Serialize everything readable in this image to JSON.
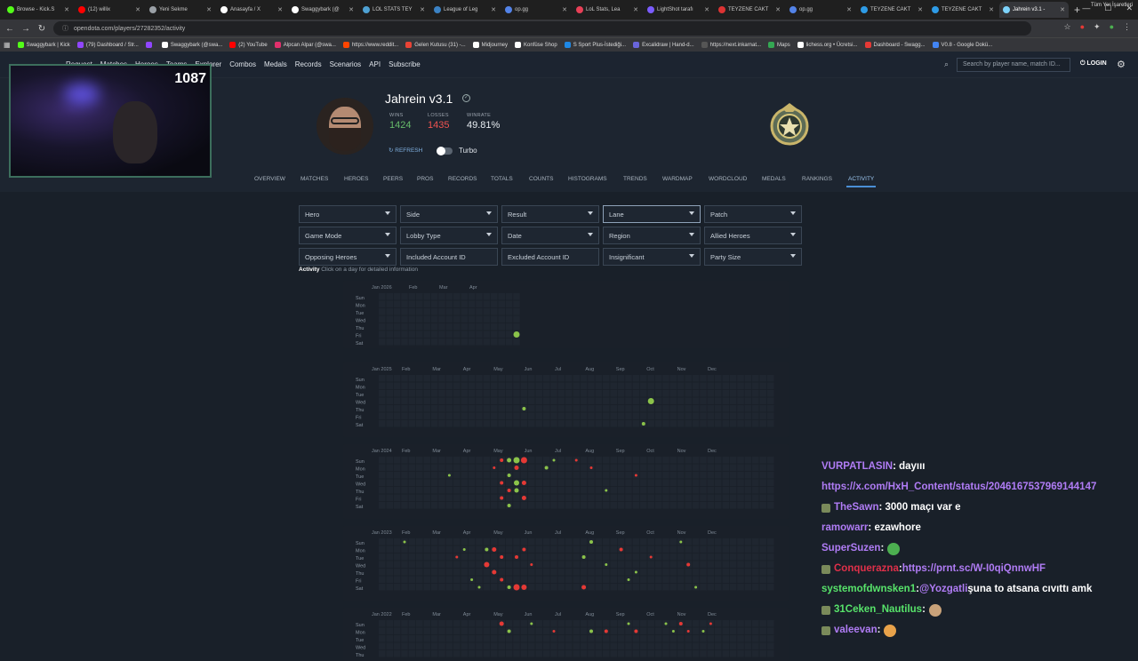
{
  "browser": {
    "tabs": [
      {
        "label": "Browse - Kick.S",
        "color": "#53fc18"
      },
      {
        "label": "(12) willix",
        "color": "#ff0000"
      },
      {
        "label": "Yeni Sekme",
        "color": "#9aa0a6"
      },
      {
        "label": "Anasayfa / X",
        "color": "#ffffff"
      },
      {
        "label": "Swaggybark (@",
        "color": "#ffffff"
      },
      {
        "label": "LOL STATS TEY",
        "color": "#4ea1d3"
      },
      {
        "label": "League of Leg",
        "color": "#3b82c4"
      },
      {
        "label": "op.gg",
        "color": "#5383e8"
      },
      {
        "label": "LoL Stats, Lea",
        "color": "#e84057"
      },
      {
        "label": "LightShot tarafı",
        "color": "#7b5cff"
      },
      {
        "label": "TEYZENE CAKT",
        "color": "#d33"
      },
      {
        "label": "op.gg",
        "color": "#5383e8"
      },
      {
        "label": "TEYZENE CAKT",
        "color": "#2e9be6"
      },
      {
        "label": "TEYZENE CAKT",
        "color": "#2e9be6"
      },
      {
        "label": "Jahrein v3.1 -",
        "color": "#7dd3fc"
      }
    ],
    "url": "opendota.com/players/27282352/activity",
    "bookmarks": [
      {
        "label": "Swaggybark | Kick",
        "color": "#53fc18"
      },
      {
        "label": "(79) Dashboard / Str...",
        "color": "#9146ff"
      },
      {
        "label": "",
        "color": "#9146ff"
      },
      {
        "label": "Swaggybark (@swa...",
        "color": "#ffffff"
      },
      {
        "label": "(2) YouTube",
        "color": "#ff0000"
      },
      {
        "label": "Alpcan Alpar (@swa...",
        "color": "#e1306c"
      },
      {
        "label": "https://www.reddit...",
        "color": "#ff4500"
      },
      {
        "label": "Gelen Kutusu (31) -...",
        "color": "#ea4335"
      },
      {
        "label": "Midjourney",
        "color": "#ffffff"
      },
      {
        "label": "Konfüse Shop",
        "color": "#ffffff"
      },
      {
        "label": "S Sport Plus-İstediği...",
        "color": "#1e88e5"
      },
      {
        "label": "Excalidraw | Hand-d...",
        "color": "#6965db"
      },
      {
        "label": "https://next.inkarnat...",
        "color": "#555555"
      },
      {
        "label": "Maps",
        "color": "#34a853"
      },
      {
        "label": "lichess.org • Ücretsi...",
        "color": "#ffffff"
      },
      {
        "label": "Dashboard - Swagg...",
        "color": "#e53935"
      },
      {
        "label": "V0.8 - Google Dokü...",
        "color": "#4285f4"
      }
    ],
    "all_bookmarks": "Tüm Yer İşaretleri"
  },
  "site": {
    "nav": [
      "Request",
      "Matches",
      "Heroes",
      "Teams",
      "Explorer",
      "Combos",
      "Medals",
      "Records",
      "Scenarios",
      "API",
      "Subscribe"
    ],
    "search_placeholder": "Search by player name, match ID...",
    "login": "LOGIN"
  },
  "stream": {
    "viewers": "1087"
  },
  "player": {
    "name": "Jahrein v3.1",
    "wins_label": "WINS",
    "wins": "1424",
    "losses_label": "LOSSES",
    "losses": "1435",
    "winrate_label": "WINRATE",
    "winrate": "49.81%",
    "refresh": "REFRESH",
    "turbo": "Turbo"
  },
  "tabs": [
    "OVERVIEW",
    "MATCHES",
    "HEROES",
    "PEERS",
    "PROS",
    "RECORDS",
    "TOTALS",
    "COUNTS",
    "HISTOGRAMS",
    "TRENDS",
    "WARDMAP",
    "WORDCLOUD",
    "MEDALS",
    "RANKINGS",
    "ACTIVITY"
  ],
  "active_tab": "ACTIVITY",
  "filters": [
    [
      "Hero",
      "Side",
      "Result",
      "Lane",
      "Patch"
    ],
    [
      "Game Mode",
      "Lobby Type",
      "Date",
      "Region",
      "Allied Heroes"
    ],
    [
      "Opposing Heroes",
      "Included Account ID",
      "Excluded Account ID",
      "Insignificant",
      "Party Size"
    ]
  ],
  "filters_dropdown": [
    [
      true,
      true,
      true,
      true,
      true
    ],
    [
      true,
      true,
      true,
      true,
      true
    ],
    [
      true,
      false,
      false,
      true,
      true
    ]
  ],
  "activity": {
    "title": "Activity",
    "hint": "Click on a day for detailed information"
  },
  "days": [
    "Sun",
    "Mon",
    "Tue",
    "Wed",
    "Thu",
    "Fri",
    "Sat"
  ],
  "calendars": [
    {
      "year_label": "Jan 2026",
      "months": [
        "Feb",
        "Mar",
        "Apr"
      ],
      "weeks": 19
    },
    {
      "year_label": "Jan 2025",
      "months": [
        "Feb",
        "Mar",
        "Apr",
        "May",
        "Jun",
        "Jul",
        "Aug",
        "Sep",
        "Oct",
        "Nov",
        "Dec"
      ],
      "weeks": 53
    },
    {
      "year_label": "Jan 2024",
      "months": [
        "Feb",
        "Mar",
        "Apr",
        "May",
        "Jun",
        "Jul",
        "Aug",
        "Sep",
        "Oct",
        "Nov",
        "Dec"
      ],
      "weeks": 53
    },
    {
      "year_label": "Jan 2023",
      "months": [
        "Feb",
        "Mar",
        "Apr",
        "May",
        "Jun",
        "Jul",
        "Aug",
        "Sep",
        "Oct",
        "Nov",
        "Dec"
      ],
      "weeks": 53
    },
    {
      "year_label": "Jan 2022",
      "months": [
        "Feb",
        "Mar",
        "Apr",
        "May",
        "Jun",
        "Jul",
        "Aug",
        "Sep",
        "Oct",
        "Nov",
        "Dec"
      ],
      "weeks": 53
    }
  ],
  "colors": {
    "win": "#8bc34a",
    "loss": "#e53935",
    "wins_text": "#66bb6a",
    "losses_text": "#ef5350",
    "accent": "#4a8fd6"
  },
  "chat": [
    {
      "user": "VURPATLASIN",
      "color": "#b07cf5",
      "text": " : dayııı",
      "badge": false
    },
    {
      "user": "",
      "color": "#b07cf5",
      "text": "",
      "link": "https://x.com/HxH_Content/status/2046167537969144147",
      "badge": false
    },
    {
      "user": "TheSawn",
      "color": "#b07cf5",
      "text": " : 3000 maçı var e",
      "badge": true
    },
    {
      "user": "ramowarr",
      "color": "#b07cf5",
      "text": " : ezawhore",
      "badge": false
    },
    {
      "user": "SuperSuzen",
      "color": "#b07cf5",
      "text": " : ",
      "emoji": "#4caf50",
      "badge": false
    },
    {
      "user": "Conquerazna",
      "color": "#e0304a",
      "text": " : ",
      "link": "https://prnt.sc/W-I0qiQnnwHF",
      "badge": true
    },
    {
      "user": "systemofdwnsken1",
      "color": "#57e36a",
      "text": " : ",
      "mention": "@Yozgatli",
      "after": " şuna to atsana cıvıttı amk",
      "badge": false
    },
    {
      "user": "31Ceken_Nautilus",
      "color": "#57e36a",
      "text": " : ",
      "emoji": "#c9a27a",
      "badge": true
    },
    {
      "user": "valeevan",
      "color": "#b07cf5",
      "text": " : ",
      "emoji": "#e8a24a",
      "badge": true
    }
  ]
}
